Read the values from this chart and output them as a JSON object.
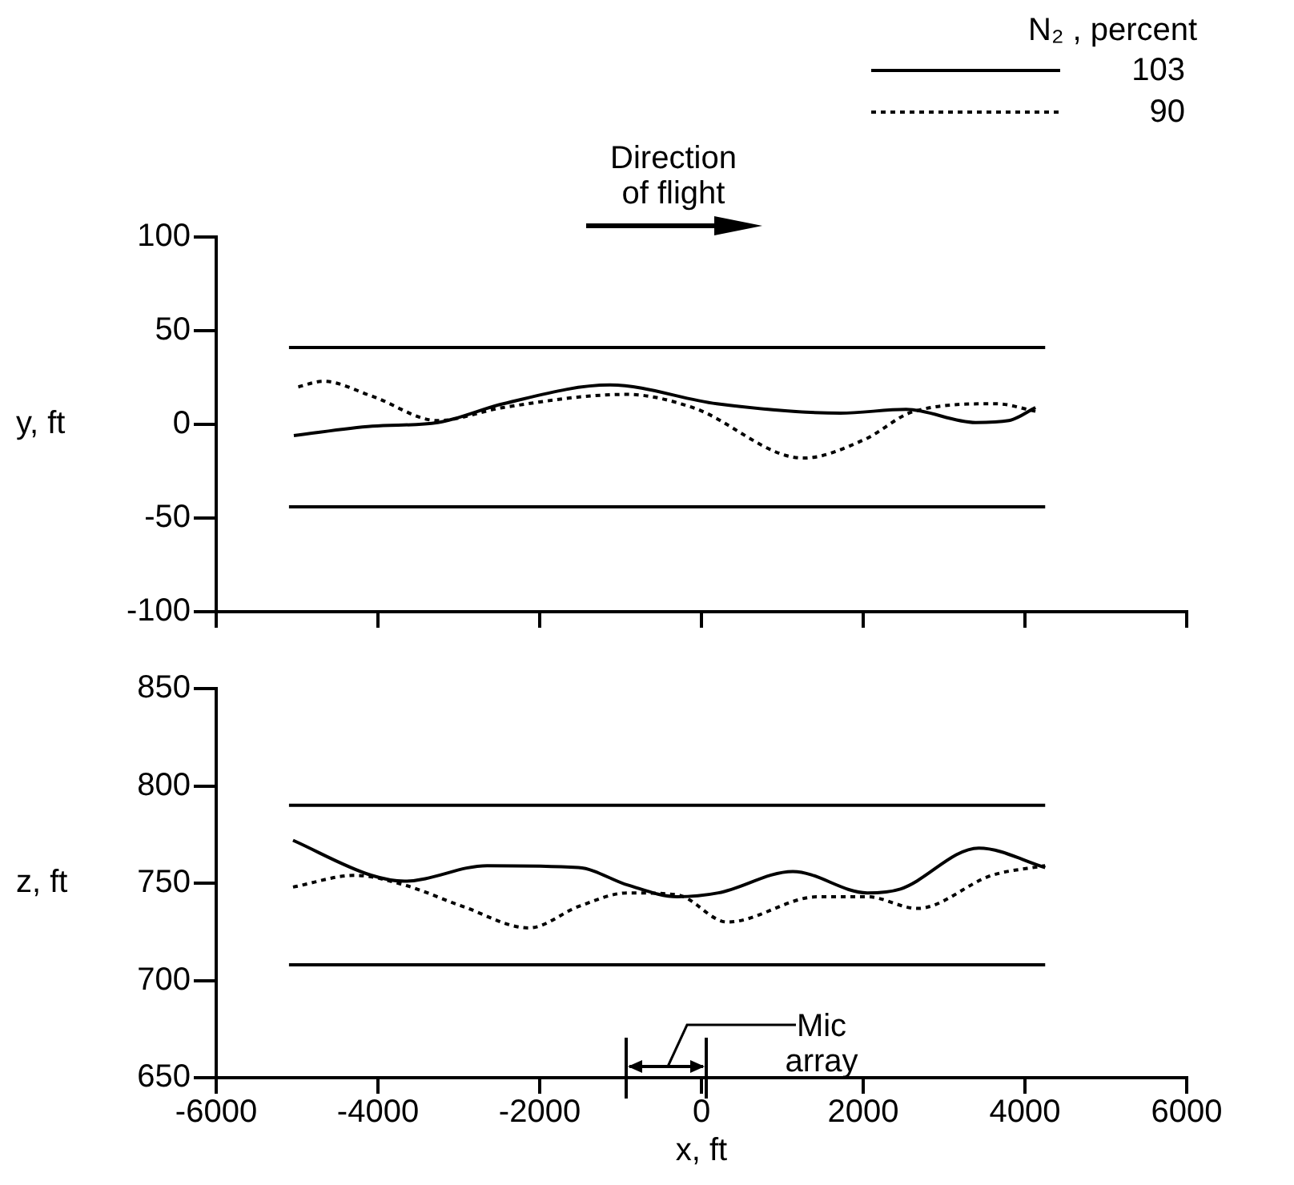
{
  "chart_data": [
    {
      "type": "line",
      "legend": "top right",
      "legend_title": "N₂ , percent",
      "ylabel": "y, ft",
      "xlim": [
        -6000,
        6000
      ],
      "xticks": [
        -6000,
        -4000,
        -2000,
        0,
        2000,
        4000,
        6000
      ],
      "ylim": [
        -100,
        100
      ],
      "yticks": [
        -100,
        -50,
        0,
        50,
        100
      ],
      "tick_labels": "y",
      "grid": false,
      "marker": "none",
      "annotations": [
        "Direction of flight"
      ],
      "ref_lines": [
        {
          "axis": "y",
          "value": 41,
          "color": "#000000"
        },
        {
          "axis": "y",
          "value": -44,
          "color": "#000000"
        }
      ],
      "series": [
        {
          "name": "103",
          "color": "#000000",
          "line_style": "solid",
          "x": [
            -5040,
            -4070,
            -3260,
            -2450,
            -1130,
            190,
            1720,
            2530,
            3390,
            3800,
            4130
          ],
          "values": [
            -6,
            -1,
            1,
            11,
            21,
            11,
            6,
            8,
            1,
            2,
            9
          ]
        },
        {
          "name": "90",
          "color": "#000000",
          "line_style": "dotted",
          "x": [
            -4985,
            -4680,
            -4070,
            -3260,
            -2450,
            -920,
            -110,
            1260,
            2020,
            2630,
            3645,
            4130
          ],
          "values": [
            20,
            23,
            15,
            2,
            9,
            16,
            9,
            -18,
            -8,
            7,
            11,
            7
          ]
        }
      ]
    },
    {
      "type": "line",
      "ylabel": "z, ft",
      "xlabel": "x, ft",
      "xlim": [
        -6000,
        6000
      ],
      "xticks": [
        -6000,
        -4000,
        -2000,
        0,
        2000,
        4000,
        6000
      ],
      "ylim": [
        650,
        850
      ],
      "yticks": [
        650,
        700,
        750,
        800,
        850
      ],
      "grid": false,
      "marker": "none",
      "annotations": [
        "Mic array"
      ],
      "ref_lines": [
        {
          "axis": "y",
          "value": 790,
          "color": "#000000"
        },
        {
          "axis": "y",
          "value": 708,
          "color": "#000000"
        }
      ],
      "series": [
        {
          "color": "#000000",
          "line_style": "solid",
          "x": [
            -5050,
            -4080,
            -3670,
            -2650,
            -1520,
            -910,
            -300,
            210,
            1130,
            2050,
            2460,
            3430,
            4250
          ],
          "values": [
            772,
            754,
            751,
            759,
            758,
            749,
            743,
            745,
            756,
            745,
            747,
            768,
            758
          ]
        },
        {
          "color": "#000000",
          "line_style": "dotted",
          "x": [
            -5050,
            -4280,
            -3670,
            -2950,
            -2130,
            -1520,
            -910,
            -300,
            320,
            1440,
            2050,
            2670,
            3590,
            4250
          ],
          "values": [
            748,
            754,
            749,
            738,
            727,
            738,
            745,
            744,
            730,
            743,
            743,
            737,
            754,
            759
          ]
        }
      ]
    }
  ]
}
